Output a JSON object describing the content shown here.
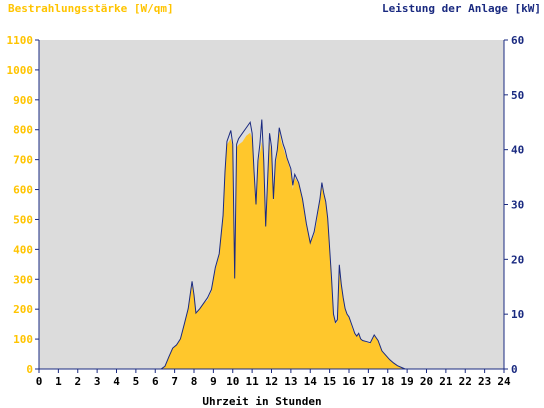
{
  "chart_data": {
    "type": "area",
    "title_left": "Bestrahlungsstärke [W/qm]",
    "title_right": "Leistung der Anlage [kW]",
    "xlabel": "Uhrzeit in Stunden",
    "xlim": [
      0,
      24
    ],
    "x_ticks": [
      "0",
      "1",
      "2",
      "3",
      "4",
      "5",
      "6",
      "7",
      "8",
      "9",
      "10",
      "11",
      "12",
      "13",
      "14",
      "15",
      "16",
      "17",
      "18",
      "19",
      "20",
      "21",
      "22",
      "23",
      "24"
    ],
    "y_left": {
      "lim": [
        0,
        1100
      ],
      "ticks": [
        "0",
        "100",
        "200",
        "300",
        "400",
        "500",
        "600",
        "700",
        "800",
        "900",
        "1000",
        "1100"
      ],
      "color": "#ffc400"
    },
    "y_right": {
      "lim": [
        0,
        60
      ],
      "ticks": [
        "0",
        "10",
        "20",
        "30",
        "40",
        "50",
        "60"
      ],
      "color": "#1a2a80"
    },
    "colors": {
      "plot_background": "#dcdcdc",
      "irradiance_fill": "#ffc72c",
      "power_line": "#1a2a80",
      "axis": "#1a2a80"
    },
    "series": [
      {
        "kind": "irradiance",
        "axis": "left",
        "style": "filled-area",
        "x": [
          0,
          6.3,
          6.5,
          6.7,
          6.9,
          7.1,
          7.3,
          7.5,
          7.7,
          7.9,
          8.0,
          8.1,
          8.3,
          8.5,
          8.7,
          8.9,
          9.0,
          9.1,
          9.3,
          9.5,
          9.6,
          9.7,
          9.8,
          9.9,
          10.0,
          10.1,
          10.15,
          10.2,
          10.3,
          10.5,
          10.7,
          10.9,
          11.0,
          11.1,
          11.2,
          11.3,
          11.4,
          11.5,
          11.6,
          11.7,
          11.8,
          11.9,
          12.0,
          12.1,
          12.2,
          12.3,
          12.4,
          12.5,
          12.6,
          12.7,
          12.8,
          12.9,
          13.0,
          13.1,
          13.2,
          13.4,
          13.6,
          13.8,
          14.0,
          14.2,
          14.3,
          14.4,
          14.5,
          14.6,
          14.7,
          14.8,
          14.9,
          15.0,
          15.1,
          15.2,
          15.3,
          15.4,
          15.5,
          15.6,
          15.7,
          15.8,
          15.9,
          16.0,
          16.1,
          16.2,
          16.3,
          16.4,
          16.5,
          16.6,
          16.7,
          16.9,
          17.1,
          17.3,
          17.5,
          17.7,
          17.9,
          18.1,
          18.3,
          18.5,
          18.7,
          18.9,
          19.0,
          19.1,
          24
        ],
        "values": [
          0,
          0,
          10,
          40,
          70,
          80,
          100,
          150,
          200,
          280,
          240,
          185,
          200,
          220,
          230,
          260,
          300,
          330,
          380,
          500,
          650,
          750,
          760,
          770,
          740,
          300,
          520,
          740,
          750,
          760,
          780,
          790,
          770,
          650,
          550,
          680,
          720,
          760,
          700,
          480,
          620,
          760,
          720,
          560,
          680,
          720,
          800,
          760,
          740,
          720,
          700,
          680,
          660,
          600,
          640,
          620,
          560,
          480,
          420,
          450,
          480,
          520,
          560,
          610,
          580,
          550,
          500,
          400,
          300,
          180,
          150,
          160,
          340,
          280,
          240,
          200,
          180,
          170,
          150,
          130,
          120,
          110,
          115,
          100,
          95,
          90,
          85,
          110,
          95,
          60,
          45,
          30,
          20,
          10,
          5,
          0,
          0,
          0,
          0
        ]
      },
      {
        "kind": "power",
        "axis": "right",
        "style": "line",
        "x": [
          0,
          6.3,
          6.5,
          6.7,
          6.9,
          7.1,
          7.3,
          7.5,
          7.7,
          7.9,
          8.0,
          8.1,
          8.3,
          8.5,
          8.7,
          8.9,
          9.0,
          9.1,
          9.3,
          9.5,
          9.6,
          9.7,
          9.8,
          9.9,
          10.0,
          10.1,
          10.15,
          10.2,
          10.3,
          10.5,
          10.7,
          10.9,
          11.0,
          11.1,
          11.2,
          11.3,
          11.4,
          11.5,
          11.6,
          11.7,
          11.8,
          11.9,
          12.0,
          12.1,
          12.2,
          12.3,
          12.4,
          12.5,
          12.6,
          12.7,
          12.8,
          12.9,
          13.0,
          13.1,
          13.2,
          13.4,
          13.6,
          13.8,
          14.0,
          14.2,
          14.3,
          14.4,
          14.5,
          14.6,
          14.7,
          14.8,
          14.9,
          15.0,
          15.1,
          15.2,
          15.3,
          15.4,
          15.5,
          15.6,
          15.7,
          15.8,
          15.9,
          16.0,
          16.1,
          16.2,
          16.3,
          16.4,
          16.5,
          16.6,
          16.7,
          16.9,
          17.1,
          17.3,
          17.5,
          17.7,
          17.9,
          18.1,
          18.3,
          18.5,
          18.7,
          18.9,
          19.0,
          19.1,
          24
        ],
        "values": [
          0,
          0,
          0.5,
          2.2,
          3.8,
          4.4,
          5.5,
          8.2,
          11.0,
          16.0,
          13.5,
          10.2,
          11.0,
          12.0,
          13.0,
          14.5,
          16.5,
          18.5,
          21.0,
          28.0,
          36.0,
          41.5,
          42.5,
          43.5,
          41.0,
          16.5,
          29.0,
          41.0,
          42.0,
          43.0,
          44.0,
          45.0,
          43.0,
          36.0,
          30.0,
          38.0,
          41.0,
          45.5,
          38.0,
          26.0,
          34.5,
          43.0,
          40.5,
          31.0,
          38.0,
          40.0,
          44.0,
          42.5,
          41.0,
          40.0,
          38.5,
          37.5,
          36.5,
          33.5,
          35.5,
          34.0,
          31.0,
          26.5,
          23.0,
          25.0,
          27.0,
          29.0,
          31.0,
          34.0,
          32.0,
          30.5,
          27.5,
          22.0,
          16.5,
          10.0,
          8.5,
          9.0,
          19.0,
          15.5,
          13.0,
          11.0,
          10.0,
          9.5,
          8.5,
          7.5,
          6.5,
          6.0,
          6.5,
          5.5,
          5.2,
          5.0,
          4.8,
          6.2,
          5.2,
          3.3,
          2.5,
          1.7,
          1.1,
          0.6,
          0.3,
          0,
          0,
          0,
          0
        ]
      }
    ]
  }
}
